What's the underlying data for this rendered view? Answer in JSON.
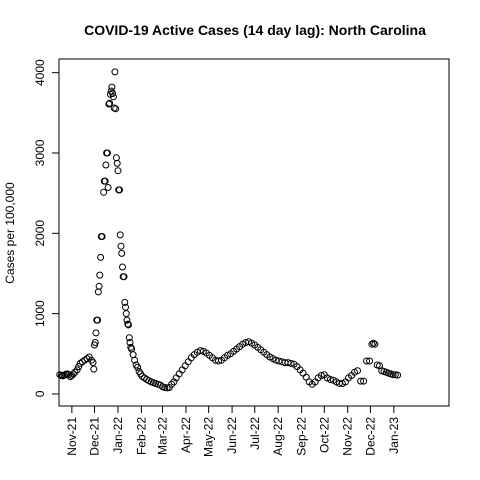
{
  "chart_data": {
    "type": "scatter",
    "title": "COVID-19 Active Cases (14 day lag): North Carolina",
    "xlabel": "",
    "ylabel": "Cases per 100,000",
    "x_range": [
      "2021-10-15",
      "2023-03-15"
    ],
    "ylim": [
      -150,
      4170
    ],
    "yticks": [
      0,
      1000,
      2000,
      3000,
      4000
    ],
    "xticks": [
      {
        "label": "Nov-21",
        "date": "2021-11-01"
      },
      {
        "label": "Dec-21",
        "date": "2021-12-01"
      },
      {
        "label": "Jan-22",
        "date": "2022-01-01"
      },
      {
        "label": "Feb-22",
        "date": "2022-02-01"
      },
      {
        "label": "Mar-22",
        "date": "2022-03-01"
      },
      {
        "label": "Apr-22",
        "date": "2022-04-01"
      },
      {
        "label": "May-22",
        "date": "2022-05-01"
      },
      {
        "label": "Jun-22",
        "date": "2022-06-01"
      },
      {
        "label": "Jul-22",
        "date": "2022-07-01"
      },
      {
        "label": "Aug-22",
        "date": "2022-08-01"
      },
      {
        "label": "Sep-22",
        "date": "2022-09-01"
      },
      {
        "label": "Oct-22",
        "date": "2022-10-01"
      },
      {
        "label": "Nov-22",
        "date": "2022-11-01"
      },
      {
        "label": "Dec-22",
        "date": "2022-12-01"
      },
      {
        "label": "Jan-23",
        "date": "2023-01-01"
      }
    ],
    "grid": false,
    "points": [
      [
        "2021-10-16",
        240
      ],
      [
        "2021-10-18",
        230
      ],
      [
        "2021-10-20",
        225
      ],
      [
        "2021-10-22",
        235
      ],
      [
        "2021-10-24",
        245
      ],
      [
        "2021-10-26",
        250
      ],
      [
        "2021-10-28",
        240
      ],
      [
        "2021-10-30",
        215
      ],
      [
        "2021-11-01",
        230
      ],
      [
        "2021-11-03",
        250
      ],
      [
        "2021-11-05",
        270
      ],
      [
        "2021-11-08",
        300
      ],
      [
        "2021-11-10",
        340
      ],
      [
        "2021-11-12",
        380
      ],
      [
        "2021-11-15",
        400
      ],
      [
        "2021-11-18",
        420
      ],
      [
        "2021-11-21",
        440
      ],
      [
        "2021-11-24",
        460
      ],
      [
        "2021-11-27",
        420
      ],
      [
        "2021-11-29",
        390
      ],
      [
        "2021-11-30",
        310
      ],
      [
        "2021-12-01",
        610
      ],
      [
        "2021-12-02",
        640
      ],
      [
        "2021-12-03",
        760
      ],
      [
        "2021-12-04",
        920
      ],
      [
        "2021-12-05",
        920
      ],
      [
        "2021-12-06",
        1270
      ],
      [
        "2021-12-07",
        1340
      ],
      [
        "2021-12-08",
        1480
      ],
      [
        "2021-12-09",
        1700
      ],
      [
        "2021-12-10",
        1960
      ],
      [
        "2021-12-11",
        1960
      ],
      [
        "2021-12-13",
        2510
      ],
      [
        "2021-12-14",
        2650
      ],
      [
        "2021-12-15",
        2650
      ],
      [
        "2021-12-16",
        2850
      ],
      [
        "2021-12-17",
        3000
      ],
      [
        "2021-12-18",
        3000
      ],
      [
        "2021-12-19",
        2570
      ],
      [
        "2021-12-20",
        3610
      ],
      [
        "2021-12-21",
        3620
      ],
      [
        "2021-12-22",
        3730
      ],
      [
        "2021-12-23",
        3770
      ],
      [
        "2021-12-24",
        3820
      ],
      [
        "2021-12-25",
        3740
      ],
      [
        "2021-12-26",
        3700
      ],
      [
        "2021-12-27",
        3560
      ],
      [
        "2021-12-28",
        4010
      ],
      [
        "2021-12-29",
        3550
      ],
      [
        "2021-12-30",
        2940
      ],
      [
        "2021-12-31",
        2870
      ],
      [
        "2022-01-01",
        2780
      ],
      [
        "2022-01-02",
        2540
      ],
      [
        "2022-01-03",
        2540
      ],
      [
        "2022-01-04",
        1980
      ],
      [
        "2022-01-05",
        1840
      ],
      [
        "2022-01-06",
        1750
      ],
      [
        "2022-01-07",
        1580
      ],
      [
        "2022-01-08",
        1460
      ],
      [
        "2022-01-09",
        1460
      ],
      [
        "2022-01-10",
        1140
      ],
      [
        "2022-01-11",
        1080
      ],
      [
        "2022-01-12",
        1000
      ],
      [
        "2022-01-13",
        920
      ],
      [
        "2022-01-14",
        870
      ],
      [
        "2022-01-15",
        860
      ],
      [
        "2022-01-16",
        700
      ],
      [
        "2022-01-17",
        640
      ],
      [
        "2022-01-18",
        580
      ],
      [
        "2022-01-19",
        560
      ],
      [
        "2022-01-21",
        490
      ],
      [
        "2022-01-23",
        420
      ],
      [
        "2022-01-25",
        360
      ],
      [
        "2022-01-27",
        330
      ],
      [
        "2022-01-29",
        280
      ],
      [
        "2022-01-31",
        250
      ],
      [
        "2022-02-02",
        220
      ],
      [
        "2022-02-05",
        200
      ],
      [
        "2022-02-08",
        180
      ],
      [
        "2022-02-11",
        165
      ],
      [
        "2022-02-14",
        150
      ],
      [
        "2022-02-17",
        140
      ],
      [
        "2022-02-20",
        130
      ],
      [
        "2022-02-23",
        120
      ],
      [
        "2022-02-26",
        110
      ],
      [
        "2022-03-01",
        90
      ],
      [
        "2022-03-04",
        80
      ],
      [
        "2022-03-07",
        75
      ],
      [
        "2022-03-10",
        80
      ],
      [
        "2022-03-13",
        120
      ],
      [
        "2022-03-16",
        150
      ],
      [
        "2022-03-19",
        200
      ],
      [
        "2022-03-23",
        250
      ],
      [
        "2022-03-27",
        300
      ],
      [
        "2022-03-31",
        350
      ],
      [
        "2022-04-04",
        400
      ],
      [
        "2022-04-08",
        450
      ],
      [
        "2022-04-12",
        490
      ],
      [
        "2022-04-16",
        520
      ],
      [
        "2022-04-20",
        540
      ],
      [
        "2022-04-24",
        530
      ],
      [
        "2022-04-28",
        510
      ],
      [
        "2022-05-02",
        480
      ],
      [
        "2022-05-06",
        450
      ],
      [
        "2022-05-10",
        420
      ],
      [
        "2022-05-14",
        410
      ],
      [
        "2022-05-18",
        420
      ],
      [
        "2022-05-22",
        450
      ],
      [
        "2022-05-26",
        480
      ],
      [
        "2022-05-30",
        500
      ],
      [
        "2022-06-03",
        530
      ],
      [
        "2022-06-07",
        560
      ],
      [
        "2022-06-11",
        590
      ],
      [
        "2022-06-15",
        620
      ],
      [
        "2022-06-19",
        640
      ],
      [
        "2022-06-23",
        650
      ],
      [
        "2022-06-27",
        630
      ],
      [
        "2022-07-01",
        610
      ],
      [
        "2022-07-05",
        580
      ],
      [
        "2022-07-09",
        550
      ],
      [
        "2022-07-13",
        520
      ],
      [
        "2022-07-17",
        490
      ],
      [
        "2022-07-21",
        460
      ],
      [
        "2022-07-25",
        440
      ],
      [
        "2022-07-29",
        420
      ],
      [
        "2022-08-02",
        410
      ],
      [
        "2022-08-06",
        400
      ],
      [
        "2022-08-10",
        390
      ],
      [
        "2022-08-14",
        390
      ],
      [
        "2022-08-18",
        380
      ],
      [
        "2022-08-22",
        370
      ],
      [
        "2022-08-26",
        340
      ],
      [
        "2022-08-30",
        300
      ],
      [
        "2022-09-03",
        260
      ],
      [
        "2022-09-07",
        210
      ],
      [
        "2022-09-11",
        150
      ],
      [
        "2022-09-15",
        120
      ],
      [
        "2022-09-19",
        150
      ],
      [
        "2022-09-23",
        200
      ],
      [
        "2022-09-27",
        230
      ],
      [
        "2022-10-01",
        240
      ],
      [
        "2022-10-05",
        200
      ],
      [
        "2022-10-09",
        180
      ],
      [
        "2022-10-13",
        170
      ],
      [
        "2022-10-17",
        150
      ],
      [
        "2022-10-21",
        130
      ],
      [
        "2022-10-25",
        130
      ],
      [
        "2022-10-29",
        150
      ],
      [
        "2022-11-02",
        200
      ],
      [
        "2022-11-06",
        230
      ],
      [
        "2022-11-10",
        270
      ],
      [
        "2022-11-14",
        290
      ],
      [
        "2022-11-18",
        160
      ],
      [
        "2022-11-22",
        160
      ],
      [
        "2022-11-26",
        410
      ],
      [
        "2022-11-30",
        410
      ],
      [
        "2022-12-03",
        620
      ],
      [
        "2022-12-05",
        630
      ],
      [
        "2022-12-07",
        620
      ],
      [
        "2022-12-10",
        360
      ],
      [
        "2022-12-13",
        350
      ],
      [
        "2022-12-16",
        290
      ],
      [
        "2022-12-19",
        280
      ],
      [
        "2022-12-22",
        270
      ],
      [
        "2022-12-25",
        260
      ],
      [
        "2022-12-28",
        250
      ],
      [
        "2022-12-31",
        240
      ],
      [
        "2023-01-03",
        240
      ],
      [
        "2023-01-06",
        235
      ]
    ]
  }
}
